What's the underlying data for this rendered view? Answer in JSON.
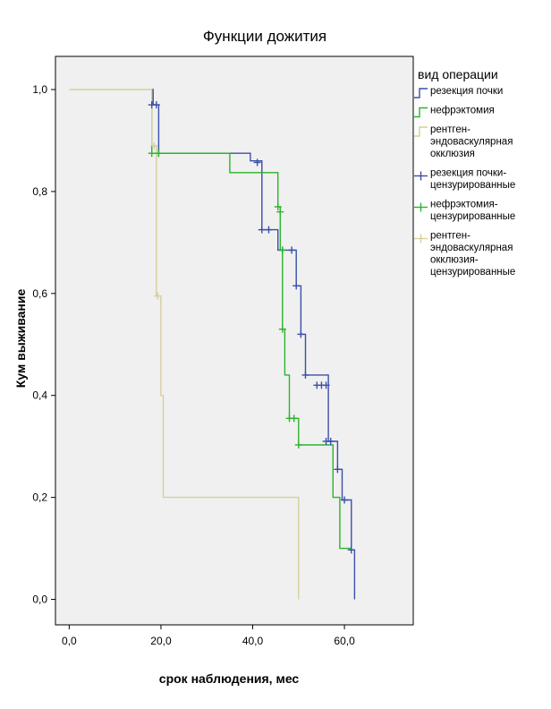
{
  "chart_data": {
    "type": "line",
    "subtype": "kaplan-meier survival step plot",
    "title": "Функции дожития",
    "xlabel": "срок наблюдения, мес",
    "ylabel": "Кум выживание",
    "xlim": [
      -3,
      75
    ],
    "ylim": [
      -0.05,
      1.065
    ],
    "x_ticks": [
      0,
      20,
      40,
      60
    ],
    "x_tick_labels": [
      "0,0",
      "20,0",
      "40,0",
      "60,0"
    ],
    "y_ticks": [
      0,
      0.2,
      0.4,
      0.6,
      0.8,
      1.0
    ],
    "y_tick_labels": [
      "0,0",
      "0,2",
      "0,4",
      "0,6",
      "0,8",
      "1,0"
    ],
    "grid": false,
    "plot_background": "#f0f0f0",
    "legend": {
      "title": "вид операции",
      "placement": "right",
      "entries": [
        {
          "label": [
            "резекция почки"
          ],
          "color": "#3b4fa8",
          "marker": "step"
        },
        {
          "label": [
            "нефрэктомия"
          ],
          "color": "#2ab52a",
          "marker": "step"
        },
        {
          "label": [
            "рентген-",
            "эндоваскулярная",
            "окклюзия"
          ],
          "color": "#d6cf9a",
          "marker": "step"
        },
        {
          "label": [
            "резекция почки-",
            "цензурированные"
          ],
          "color": "#3b4fa8",
          "marker": "plus"
        },
        {
          "label": [
            "нефрэктомия-",
            "цензурированные"
          ],
          "color": "#2ab52a",
          "marker": "plus"
        },
        {
          "label": [
            "рентген-",
            "эндоваскулярная",
            "окклюзия-",
            "цензурированные"
          ],
          "color": "#d6cf9a",
          "marker": "plus"
        }
      ]
    },
    "series": [
      {
        "name": "резекция почки",
        "color": "#3b4fa8",
        "steps": [
          [
            0,
            1.0
          ],
          [
            18.3,
            0.97
          ],
          [
            19.5,
            0.875
          ],
          [
            39.5,
            0.86
          ],
          [
            42.0,
            0.725
          ],
          [
            45.5,
            0.685
          ],
          [
            49.5,
            0.615
          ],
          [
            50.5,
            0.52
          ],
          [
            51.5,
            0.44
          ],
          [
            56.5,
            0.31
          ],
          [
            58.5,
            0.255
          ],
          [
            59.5,
            0.195
          ],
          [
            61.5,
            0.097
          ],
          [
            62.2,
            0.0
          ]
        ],
        "start_x": 18,
        "end_x": 62.2,
        "censored": [
          [
            18.0,
            0.97
          ],
          [
            19.0,
            0.97
          ],
          [
            19.5,
            0.875
          ],
          [
            41.0,
            0.857
          ],
          [
            42.0,
            0.725
          ],
          [
            43.5,
            0.725
          ],
          [
            46.5,
            0.685
          ],
          [
            48.5,
            0.685
          ],
          [
            49.5,
            0.615
          ],
          [
            50.5,
            0.52
          ],
          [
            51.5,
            0.44
          ],
          [
            54.0,
            0.42
          ],
          [
            55.0,
            0.42
          ],
          [
            56.0,
            0.42
          ],
          [
            56.0,
            0.31
          ],
          [
            57.0,
            0.31
          ],
          [
            58.5,
            0.255
          ],
          [
            60.0,
            0.195
          ],
          [
            61.5,
            0.097
          ]
        ]
      },
      {
        "name": "нефрэктомия",
        "color": "#2ab52a",
        "steps": [
          [
            0,
            1.0
          ],
          [
            18.0,
            0.875
          ],
          [
            35.0,
            0.837
          ],
          [
            45.5,
            0.77
          ],
          [
            46.0,
            0.685
          ],
          [
            46.5,
            0.53
          ],
          [
            47.0,
            0.44
          ],
          [
            48.0,
            0.355
          ],
          [
            50.0,
            0.303
          ],
          [
            57.5,
            0.2
          ],
          [
            59.0,
            0.1
          ],
          [
            61.5,
            0.097
          ]
        ],
        "start_x": 18,
        "end_x": 61.5,
        "censored": [
          [
            18.0,
            0.875
          ],
          [
            19.5,
            0.875
          ],
          [
            45.5,
            0.77
          ],
          [
            46.0,
            0.76
          ],
          [
            46.5,
            0.685
          ],
          [
            46.5,
            0.53
          ],
          [
            48.0,
            0.355
          ],
          [
            49.0,
            0.355
          ],
          [
            50.0,
            0.303
          ]
        ]
      },
      {
        "name": "рентген-эндоваскулярная окклюзия",
        "color": "#d6cf9a",
        "steps": [
          [
            0,
            1.0
          ],
          [
            18.0,
            0.89
          ],
          [
            19.0,
            0.595
          ],
          [
            20.0,
            0.4
          ],
          [
            20.5,
            0.2
          ],
          [
            50.0,
            0.0
          ]
        ],
        "start_x": 0,
        "end_x": 50.0,
        "censored": [
          [
            18.5,
            0.89
          ],
          [
            19.3,
            0.595
          ]
        ]
      }
    ]
  }
}
